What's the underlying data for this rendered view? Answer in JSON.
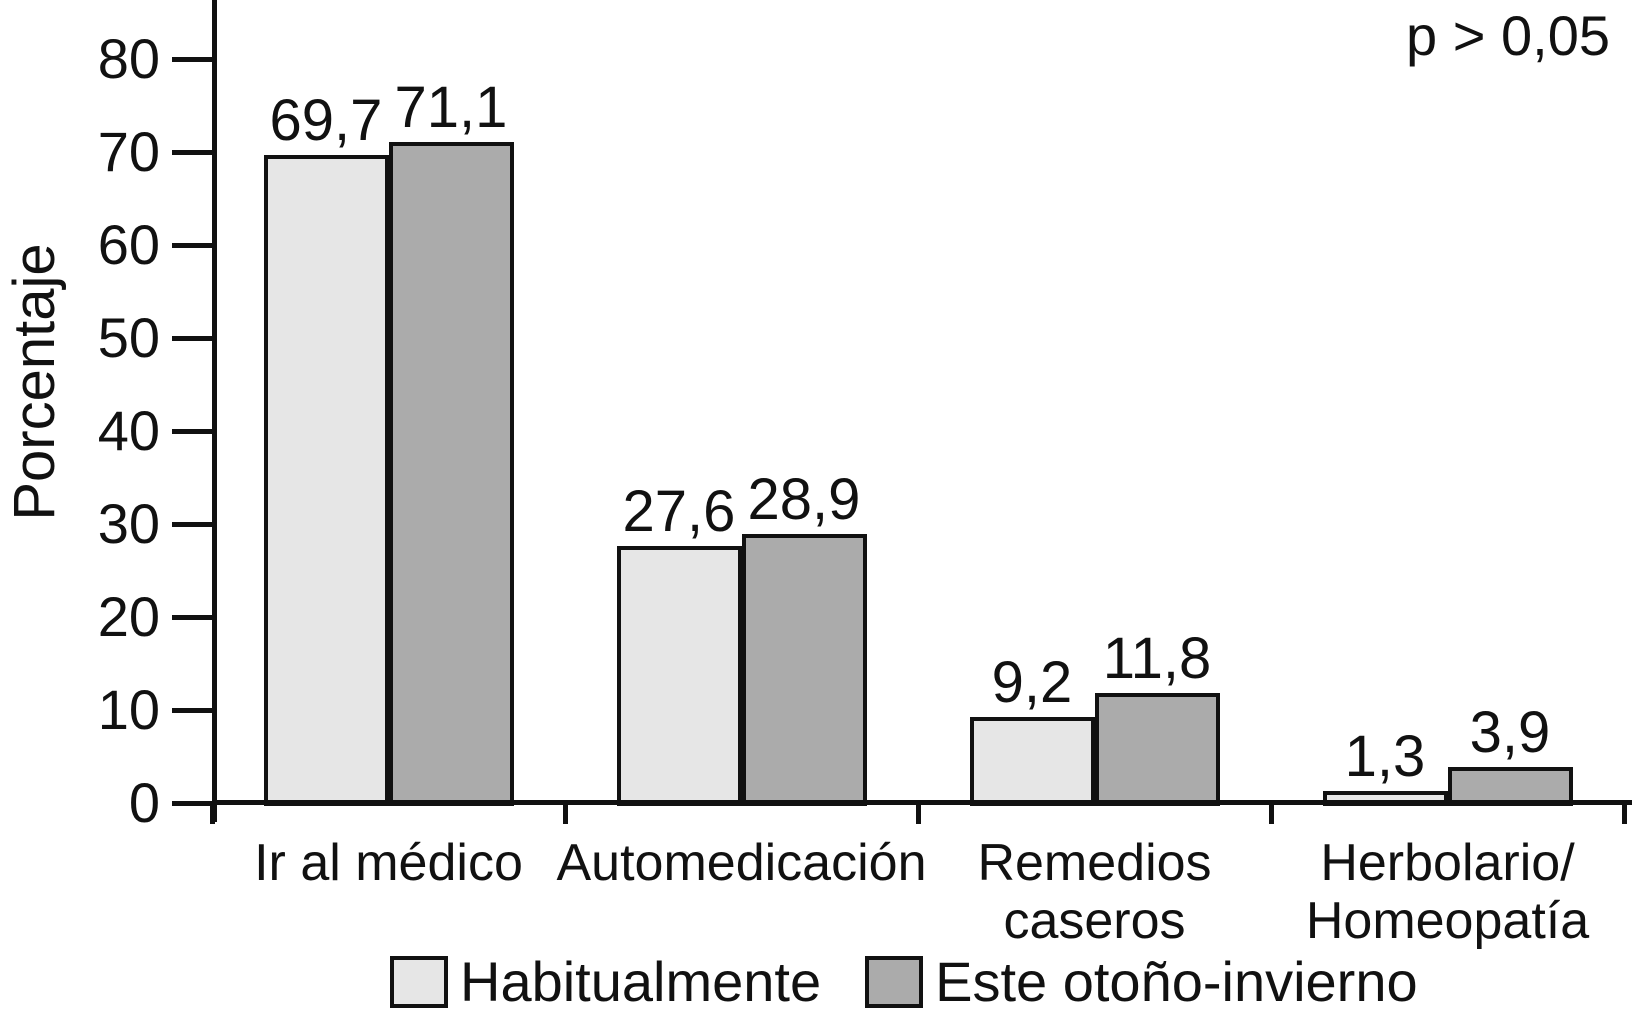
{
  "chart_data": {
    "type": "bar",
    "title": "",
    "xlabel": "",
    "ylabel": "Porcentaje",
    "ylim": [
      0,
      88
    ],
    "yticks": [
      0,
      10,
      20,
      30,
      40,
      50,
      60,
      70,
      80
    ],
    "categories": [
      "Ir al médico",
      "Automedicación",
      "Remedios\ncaseros",
      "Herbolario/\nHomeopatía"
    ],
    "series": [
      {
        "name": "Habitualmente",
        "color": "#e6e6e6",
        "values": [
          69.7,
          27.6,
          9.2,
          1.3
        ],
        "value_labels": [
          "69,7",
          "27,6",
          "9,2",
          "1,3"
        ]
      },
      {
        "name": "Este otoño-invierno",
        "color": "#ababab",
        "values": [
          71.1,
          28.9,
          11.8,
          3.9
        ],
        "value_labels": [
          "71,1",
          "28,9",
          "11,8",
          "3,9"
        ]
      }
    ],
    "annotation": "p > 0,05",
    "legend_position": "bottom",
    "grid": false,
    "bar_border_color": "#111111",
    "axis_color": "#111111"
  }
}
